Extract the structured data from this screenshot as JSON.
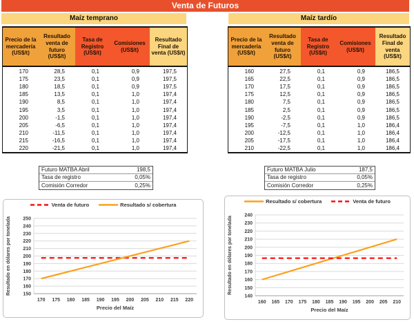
{
  "title": "Venta de Futuros",
  "colors": {
    "title-bg": "#E8502C",
    "band-bg": "#FBD67E",
    "head-orange": "#F1A139",
    "head-red": "#F4572B",
    "head-yellow": "#FBD67E",
    "line-red": "#FF0D0D",
    "line-orange": "#FBA11C",
    "grid": "#D9D9D9",
    "chart-border": "#BFBFBF",
    "chart-text": "#3D3D3D"
  },
  "tables": [
    {
      "band": "Maíz temprano",
      "columns": [
        "Precio de la mercadería (US$/t)",
        "Resultado venta de futuro (US$/t)",
        "Tasa de Registro (US$/t)",
        "Comisiones (US$/t)",
        "Resultado Final de venta (US$/t)"
      ],
      "rows": [
        [
          "170",
          "28,5",
          "0,1",
          "0,9",
          "197,5"
        ],
        [
          "175",
          "23,5",
          "0,1",
          "0,9",
          "197,5"
        ],
        [
          "180",
          "18,5",
          "0,1",
          "0,9",
          "197,5"
        ],
        [
          "185",
          "13,5",
          "0,1",
          "1,0",
          "197,4"
        ],
        [
          "190",
          "8,5",
          "0,1",
          "1,0",
          "197,4"
        ],
        [
          "195",
          "3,5",
          "0,1",
          "1,0",
          "197,4"
        ],
        [
          "200",
          "-1,5",
          "0,1",
          "1,0",
          "197,4"
        ],
        [
          "205",
          "-6,5",
          "0,1",
          "1,0",
          "197,4"
        ],
        [
          "210",
          "-11,5",
          "0,1",
          "1,0",
          "197,4"
        ],
        [
          "215",
          "-16,5",
          "0,1",
          "1,0",
          "197,4"
        ],
        [
          "220",
          "-21,5",
          "0,1",
          "1,0",
          "197,4"
        ]
      ]
    },
    {
      "band": "Maíz tardío",
      "columns": [
        "Precio de la mercadería (US$/t)",
        "Resultado venta de futuro (US$/t)",
        "Tasa de Registro (US$/t)",
        "Comisiones (US$/t)",
        "Resultado Final de venta (US$/t)"
      ],
      "rows": [
        [
          "160",
          "27,5",
          "0,1",
          "0,9",
          "186,5"
        ],
        [
          "165",
          "22,5",
          "0,1",
          "0,9",
          "186,5"
        ],
        [
          "170",
          "17,5",
          "0,1",
          "0,9",
          "186,5"
        ],
        [
          "175",
          "12,5",
          "0,1",
          "0,9",
          "186,5"
        ],
        [
          "180",
          "7,5",
          "0,1",
          "0,9",
          "186,5"
        ],
        [
          "185",
          "2,5",
          "0,1",
          "0,9",
          "186,5"
        ],
        [
          "190",
          "-2,5",
          "0,1",
          "0,9",
          "186,5"
        ],
        [
          "195",
          "-7,5",
          "0,1",
          "1,0",
          "186,4"
        ],
        [
          "200",
          "-12,5",
          "0,1",
          "1,0",
          "186,4"
        ],
        [
          "205",
          "-17,5",
          "0,1",
          "1,0",
          "186,4"
        ],
        [
          "210",
          "-22,5",
          "0,1",
          "1,0",
          "186,4"
        ]
      ]
    }
  ],
  "info_boxes": [
    {
      "rows": [
        {
          "label": "Futuro MATBA Abril",
          "value": "198,5"
        },
        {
          "label": "Tasa de registro",
          "value": "0,05%"
        },
        {
          "label": "Comisión Corredor",
          "value": "0,25%"
        }
      ]
    },
    {
      "rows": [
        {
          "label": "Futuro MATBA Julio",
          "value": "187,5"
        },
        {
          "label": "Tasa de registro",
          "value": "0,05%"
        },
        {
          "label": "Comisión Corredor",
          "value": "0,25%"
        }
      ]
    }
  ],
  "chart_data": [
    {
      "type": "line",
      "title": "",
      "x": [
        170,
        175,
        180,
        185,
        190,
        195,
        200,
        205,
        210,
        215,
        220
      ],
      "xlabel": "Precio del Maíz",
      "ylabel": "Resultado en dólares por tonelada",
      "ylim": [
        150,
        250
      ],
      "ytick_step": 10,
      "grid": "horizontal",
      "legend_position": "top",
      "series": [
        {
          "name": "Venta de futuro",
          "style": "dashed",
          "color": "#FF0D0D",
          "values": [
            197.5,
            197.5,
            197.5,
            197.5,
            197.5,
            197.5,
            197.5,
            197.5,
            197.5,
            197.5,
            197.5
          ]
        },
        {
          "name": "Resultado s/ cobertura",
          "style": "solid",
          "color": "#FBA11C",
          "values": [
            170,
            175,
            180,
            185,
            190,
            195,
            200,
            205,
            210,
            215,
            220
          ]
        }
      ]
    },
    {
      "type": "line",
      "title": "",
      "x": [
        160,
        165,
        170,
        175,
        180,
        185,
        190,
        195,
        200,
        205,
        210
      ],
      "xlabel": "Precio del Maíz",
      "ylabel": "Resultado en dólares por tonelada",
      "ylim": [
        140,
        240
      ],
      "ytick_step": 10,
      "grid": "horizontal",
      "legend_position": "top",
      "series": [
        {
          "name": "Resultado s/ cobertura",
          "style": "solid",
          "color": "#FBA11C",
          "values": [
            160,
            165,
            170,
            175,
            180,
            185,
            190,
            195,
            200,
            205,
            210
          ]
        },
        {
          "name": "Venta de futuro",
          "style": "dashed",
          "color": "#FF0D0D",
          "values": [
            186.5,
            186.5,
            186.5,
            186.5,
            186.5,
            186.5,
            186.5,
            186.5,
            186.5,
            186.5,
            186.5
          ]
        }
      ]
    }
  ]
}
